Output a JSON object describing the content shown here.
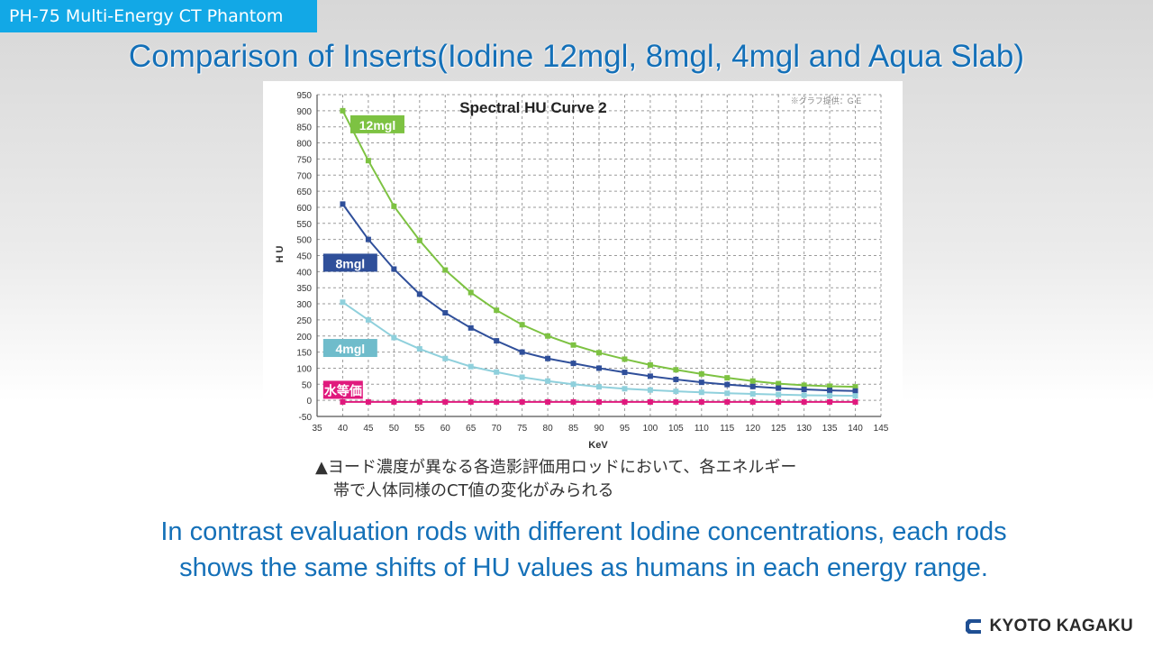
{
  "header": {
    "tag": "PH-75 Multi-Energy CT Phantom",
    "title": "Comparison of Inserts(Iodine 12mgl, 8mgl, 4mgl and Aqua Slab)"
  },
  "chart_data": {
    "type": "line",
    "title": "Spectral HU Curve 2",
    "credit": "※グラフ提供：G E",
    "xlabel": "KeV",
    "ylabel": "H U",
    "xlim": [
      35,
      145
    ],
    "ylim": [
      -50,
      950
    ],
    "x_ticks": [
      35,
      40,
      45,
      50,
      55,
      60,
      65,
      70,
      75,
      80,
      85,
      90,
      95,
      100,
      105,
      110,
      115,
      120,
      125,
      130,
      135,
      140,
      145
    ],
    "y_ticks": [
      -50,
      0,
      50,
      100,
      150,
      200,
      250,
      300,
      350,
      400,
      450,
      500,
      550,
      600,
      650,
      700,
      750,
      800,
      850,
      900,
      950
    ],
    "grid": true,
    "x": [
      40,
      45,
      50,
      55,
      60,
      65,
      70,
      75,
      80,
      85,
      90,
      95,
      100,
      105,
      110,
      115,
      120,
      125,
      130,
      135,
      140
    ],
    "series": [
      {
        "name": "12mgl",
        "color": "#7dc242",
        "label_color": "#7dc242",
        "values": [
          900,
          745,
          603,
          497,
          405,
          335,
          280,
          235,
          200,
          172,
          148,
          128,
          110,
          95,
          82,
          70,
          60,
          52,
          47,
          44,
          42
        ]
      },
      {
        "name": "8mgl",
        "color": "#2f4f9a",
        "label_color": "#2f4f9a",
        "values": [
          610,
          500,
          408,
          330,
          272,
          225,
          185,
          150,
          130,
          115,
          100,
          87,
          75,
          65,
          56,
          49,
          43,
          38,
          34,
          31,
          29
        ]
      },
      {
        "name": "4mgl",
        "color": "#8fd0dc",
        "label_color": "#6fbccb",
        "values": [
          305,
          250,
          195,
          160,
          130,
          105,
          88,
          72,
          60,
          50,
          42,
          36,
          32,
          28,
          25,
          22,
          20,
          18,
          16,
          15,
          14
        ]
      },
      {
        "name": "水等価",
        "color": "#e0197d",
        "label_color": "#e0197d",
        "values": [
          -5,
          -5,
          -5,
          -5,
          -5,
          -5,
          -5,
          -5,
          -5,
          -5,
          -5,
          -5,
          -5,
          -5,
          -5,
          -5,
          -5,
          -5,
          -5,
          -5,
          -5
        ]
      }
    ]
  },
  "caption": {
    "line1": "▲ヨード濃度が異なる各造影評価用ロッドにおいて、各エネルギー",
    "line2": "帯で人体同様のCT値の変化がみられる"
  },
  "body": {
    "line1": "In contrast evaluation rods with different Iodine concentrations, each rods",
    "line2": "shows the same shifts of HU values as humans in each energy range."
  },
  "brand": {
    "name": "KYOTO KAGAKU"
  }
}
